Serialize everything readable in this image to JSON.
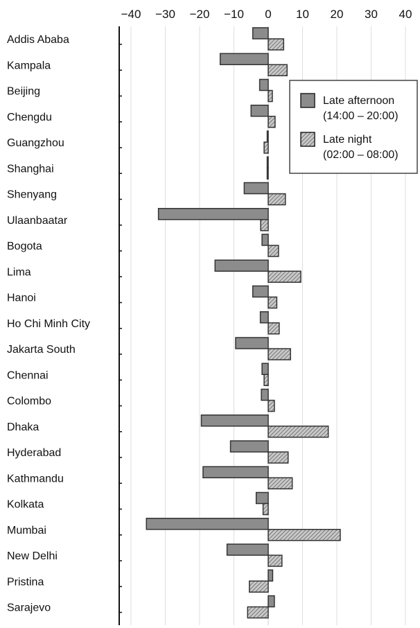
{
  "chart_data": {
    "type": "bar",
    "orientation": "horizontal",
    "categories": [
      "Addis Ababa",
      "Kampala",
      "Beijing",
      "Chengdu",
      "Guangzhou",
      "Shanghai",
      "Shenyang",
      "Ulaanbaatar",
      "Bogota",
      "Lima",
      "Hanoi",
      "Ho Chi Minh City",
      "Jakarta South",
      "Chennai",
      "Colombo",
      "Dhaka",
      "Hyderabad",
      "Kathmandu",
      "Kolkata",
      "Mumbai",
      "New Delhi",
      "Pristina",
      "Sarajevo"
    ],
    "series": [
      {
        "name": "Late afternoon (14:00 – 20:00)",
        "legend_lines": [
          "Late afternoon",
          "(14:00 – 20:00)"
        ],
        "fill": "#8c8c8c",
        "pattern": "solid",
        "values": [
          -4.5,
          -14,
          -2.5,
          -5,
          -0.3,
          -0.3,
          -7,
          -32,
          -1.8,
          -15.5,
          -4.5,
          -2.3,
          -9.5,
          -1.8,
          -2,
          -19.5,
          -11,
          -19,
          -3.5,
          -35.5,
          -12,
          1.3,
          1.8
        ]
      },
      {
        "name": "Late night (02:00 – 08:00)",
        "legend_lines": [
          "Late night",
          "(02:00 – 08:00)"
        ],
        "fill": "#b0b0b0",
        "pattern": "hatched",
        "values": [
          4.5,
          5.5,
          1.2,
          2,
          -1.2,
          -0.3,
          5,
          -2.2,
          3,
          9.5,
          2.5,
          3.2,
          6.5,
          -1.2,
          1.8,
          17.5,
          5.8,
          7,
          -1.5,
          21,
          4,
          -5.5,
          -6
        ]
      }
    ],
    "xlim": [
      -45,
      45
    ],
    "xticks": [
      -40,
      -30,
      -20,
      -10,
      0,
      10,
      20,
      30,
      40
    ],
    "xtick_labels": [
      "−40",
      "−30",
      "−20",
      "−10",
      "0",
      "10",
      "20",
      "30",
      "40"
    ],
    "xaxis_position": "top",
    "grid": "vertical",
    "legend_position": "top-right"
  }
}
